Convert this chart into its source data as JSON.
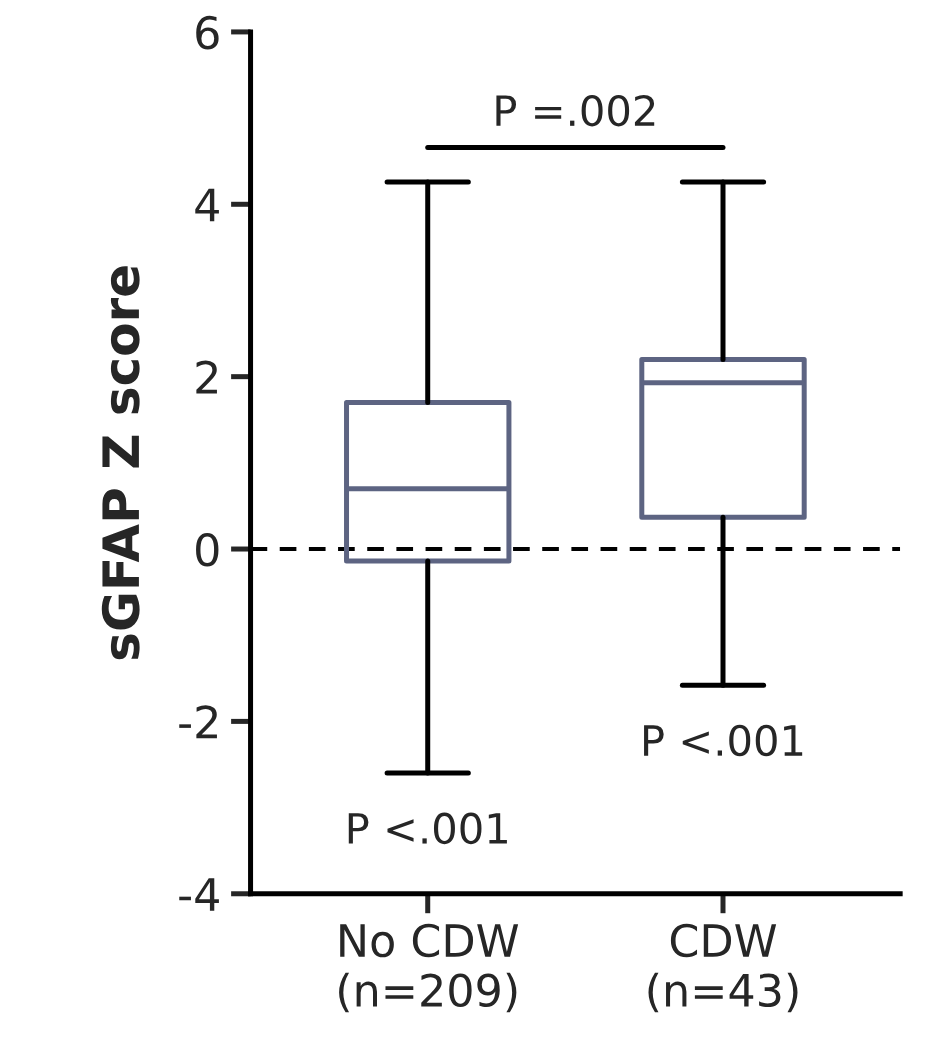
{
  "chart_data": {
    "type": "box",
    "ylabel": "sGFAP Z score",
    "categories": [
      "No CDW\n(n=209)",
      "CDW\n(n=43)"
    ],
    "boxes": [
      {
        "low": -2.6,
        "q1": -0.14,
        "median": 0.7,
        "q3": 1.7,
        "high": 4.26
      },
      {
        "low": -1.58,
        "q1": 0.37,
        "median": 1.93,
        "q3": 2.2,
        "high": 4.26
      }
    ],
    "color": "#5d6482",
    "ylim": [
      -4,
      6
    ],
    "yticks": [
      {
        "value": -4,
        "label": "-4"
      },
      {
        "value": -2,
        "label": "-2"
      },
      0,
      2,
      4,
      6
    ],
    "ref_lines": [
      {
        "axis": "y",
        "value": 0,
        "line_style": "dashed",
        "color": "#000000"
      }
    ],
    "annotations": [
      "P =.002",
      "P <.001",
      "P <.001"
    ],
    "grid": false,
    "legend": false
  }
}
